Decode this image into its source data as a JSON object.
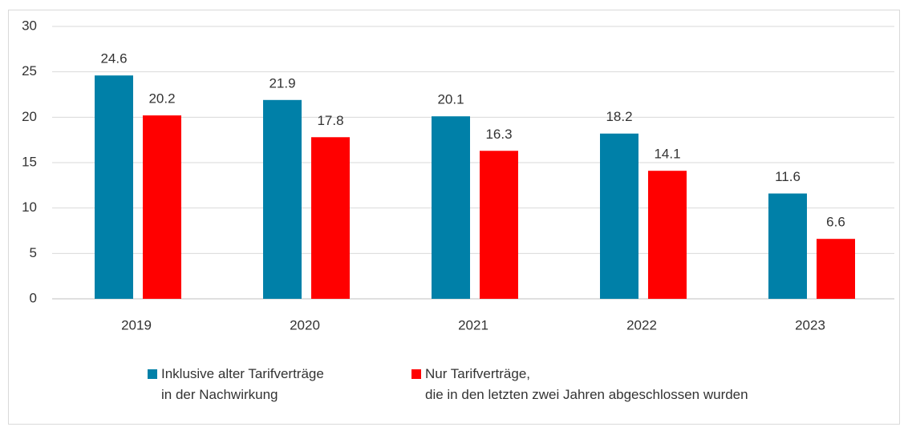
{
  "chart_data": {
    "type": "bar",
    "categories": [
      "2019",
      "2020",
      "2021",
      "2022",
      "2023"
    ],
    "series": [
      {
        "name": "Inklusive alter Tarifverträge\nin der Nachwirkung",
        "color": "#0080a8",
        "values": [
          24.6,
          21.9,
          20.1,
          18.2,
          11.6
        ]
      },
      {
        "name": "Nur Tarifverträge,\ndie in den letzten zwei Jahren abgeschlossen wurden",
        "color": "#ff0000",
        "values": [
          20.2,
          17.8,
          16.3,
          14.1,
          6.6
        ]
      }
    ],
    "ylim": [
      0,
      30
    ],
    "yticks": [
      0,
      5,
      10,
      15,
      20,
      25,
      30
    ],
    "grid": true,
    "legend": "bottom"
  }
}
